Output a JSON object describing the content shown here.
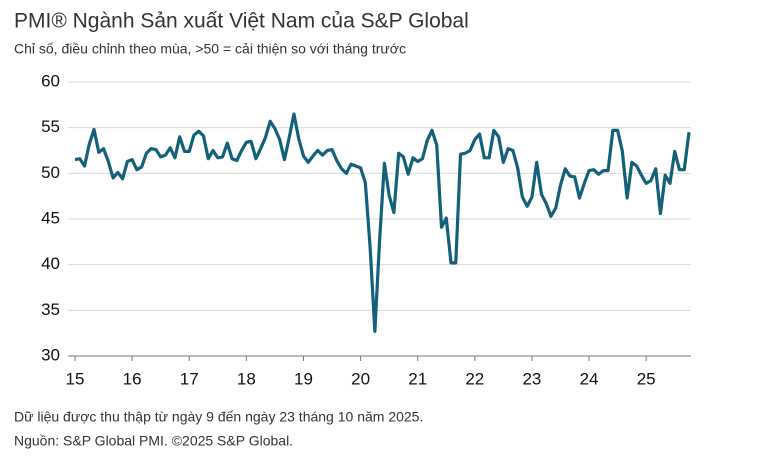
{
  "chart_data": {
    "type": "line",
    "title": "PMI® Ngành Sản xuất Việt Nam của S&P Global",
    "subtitle": "Chỉ số, điều chỉnh theo mùa, >50 = cải thiện so với tháng trước",
    "footnotes": [
      "Dữ liệu được thu thập từ ngày 9 đến ngày 23 tháng 10 năm 2025.",
      "Nguồn: S&P Global PMI. ©2025 S&P Global."
    ],
    "x": [
      15,
      15.083,
      15.167,
      15.25,
      15.333,
      15.417,
      15.5,
      15.583,
      15.667,
      15.75,
      15.833,
      15.917,
      16,
      16.083,
      16.167,
      16.25,
      16.333,
      16.417,
      16.5,
      16.583,
      16.667,
      16.75,
      16.833,
      16.917,
      17,
      17.083,
      17.167,
      17.25,
      17.333,
      17.417,
      17.5,
      17.583,
      17.667,
      17.75,
      17.833,
      17.917,
      18,
      18.083,
      18.167,
      18.25,
      18.333,
      18.417,
      18.5,
      18.583,
      18.667,
      18.75,
      18.833,
      18.917,
      19,
      19.083,
      19.167,
      19.25,
      19.333,
      19.417,
      19.5,
      19.583,
      19.667,
      19.75,
      19.833,
      19.917,
      20,
      20.083,
      20.167,
      20.25,
      20.333,
      20.417,
      20.5,
      20.583,
      20.667,
      20.75,
      20.833,
      20.917,
      21,
      21.083,
      21.167,
      21.25,
      21.333,
      21.417,
      21.5,
      21.583,
      21.667,
      21.75,
      21.833,
      21.917,
      22,
      22.083,
      22.167,
      22.25,
      22.333,
      22.417,
      22.5,
      22.583,
      22.667,
      22.75,
      22.833,
      22.917,
      23,
      23.083,
      23.167,
      23.25,
      23.333,
      23.417,
      23.5,
      23.583,
      23.667,
      23.75,
      23.833,
      23.917,
      24,
      24.083,
      24.167,
      24.25,
      24.333,
      24.417,
      24.5,
      24.583,
      24.667,
      24.75,
      24.833,
      24.917,
      25,
      25.083,
      25.167,
      25.25,
      25.333,
      25.417,
      25.5,
      25.583,
      25.667,
      25.75
    ],
    "series": [
      {
        "color": "#13607a",
        "values": [
          51.5,
          51.6,
          50.8,
          53.2,
          54.8,
          52.3,
          52.7,
          51.3,
          49.5,
          50.1,
          49.4,
          51.3,
          51.5,
          50.4,
          50.7,
          52.2,
          52.7,
          52.6,
          51.8,
          52.0,
          52.8,
          51.7,
          54.0,
          52.4,
          52.4,
          54.2,
          54.6,
          54.1,
          51.6,
          52.5,
          51.7,
          51.8,
          53.3,
          51.6,
          51.4,
          52.5,
          53.4,
          53.5,
          51.6,
          52.7,
          53.9,
          55.7,
          54.9,
          53.7,
          51.5,
          53.9,
          56.5,
          53.8,
          51.9,
          51.2,
          51.9,
          52.5,
          52.0,
          52.5,
          52.6,
          51.4,
          50.5,
          50.0,
          51.0,
          50.8,
          50.6,
          49.0,
          41.9,
          32.7,
          42.7,
          51.1,
          47.6,
          45.7,
          52.2,
          51.8,
          49.9,
          51.7,
          51.3,
          51.6,
          53.6,
          54.7,
          53.1,
          44.1,
          45.1,
          40.2,
          40.2,
          52.1,
          52.2,
          52.5,
          53.7,
          54.3,
          51.7,
          51.7,
          54.7,
          54.0,
          51.2,
          52.7,
          52.5,
          50.6,
          47.4,
          46.4,
          47.4,
          51.2,
          47.7,
          46.7,
          45.3,
          46.2,
          48.7,
          50.5,
          49.7,
          49.6,
          47.3,
          48.9,
          50.3,
          50.4,
          49.9,
          50.3,
          50.3,
          54.7,
          54.7,
          52.4,
          47.3,
          51.2,
          50.8,
          49.8,
          48.9,
          49.2,
          50.5,
          45.6,
          49.8,
          48.9,
          52.4,
          50.4,
          50.4,
          54.5
        ]
      }
    ],
    "xlim": [
      15,
      25.75
    ],
    "xticks": [
      15,
      16,
      17,
      18,
      19,
      20,
      21,
      22,
      23,
      24,
      25
    ],
    "ylim": [
      30,
      60
    ],
    "yticks": [
      30,
      35,
      40,
      45,
      50,
      55,
      60
    ],
    "grid": true
  }
}
